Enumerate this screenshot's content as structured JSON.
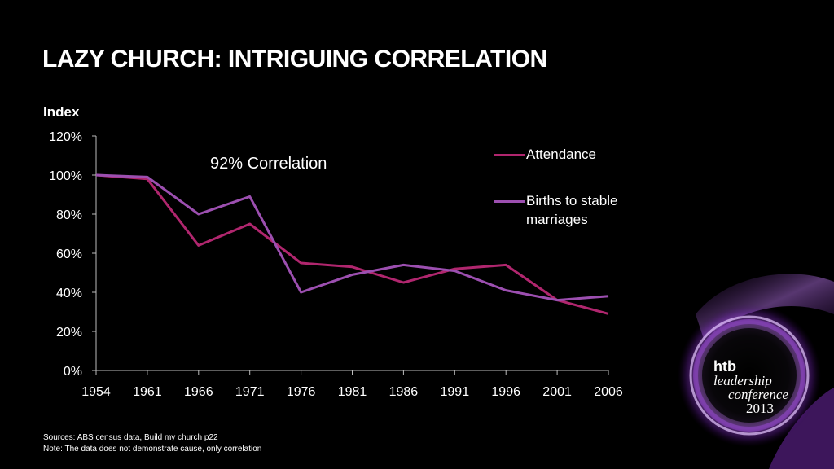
{
  "title": "LAZY CHURCH: INTRIGUING CORRELATION",
  "annotation": "92% Correlation",
  "footer": {
    "sources": "Sources: ABS census data, Build my church p22",
    "note": "Note: The data does not demonstrate cause, only correlation"
  },
  "brand": {
    "line1": "htb",
    "line2": "leadership",
    "line3": "conference",
    "line4": "2013"
  },
  "colors": {
    "background": "#000000",
    "attendance": "#b0266e",
    "births": "#9c4fb0",
    "axis": "#bdbdbd",
    "text": "#ffffff"
  },
  "chart_data": {
    "type": "line",
    "ylabel": "Index",
    "xlabel": "",
    "categories": [
      "1954",
      "1961",
      "1966",
      "1971",
      "1976",
      "1981",
      "1986",
      "1991",
      "1996",
      "2001",
      "2006"
    ],
    "ylim": [
      0,
      120
    ],
    "yticks": [
      "0%",
      "20%",
      "40%",
      "60%",
      "80%",
      "100%",
      "120%"
    ],
    "grid": false,
    "legend_position": "top-right",
    "series": [
      {
        "name": "Attendance",
        "color": "#b0266e",
        "values": [
          100,
          98,
          64,
          75,
          55,
          53,
          45,
          52,
          54,
          36,
          29
        ]
      },
      {
        "name": "Births to stable marriages",
        "color": "#9c4fb0",
        "values": [
          100,
          99,
          80,
          89,
          40,
          49,
          54,
          51,
          41,
          36,
          38
        ]
      }
    ]
  }
}
